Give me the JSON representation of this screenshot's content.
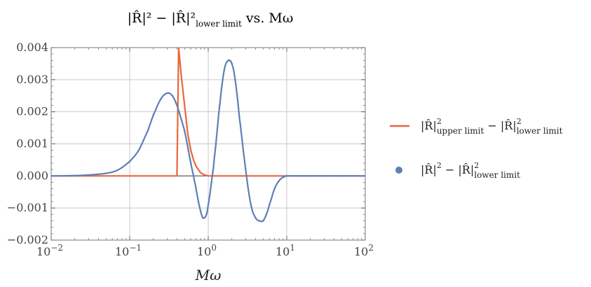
{
  "chart_data": {
    "type": "line",
    "title": {
      "main": "|R̂|² − |R̂|²",
      "sub": "lower limit",
      "suffix": " vs. Mω"
    },
    "xlabel": "Mω",
    "ylabel": "",
    "x_scale": "log",
    "xlim": [
      0.01,
      100
    ],
    "ylim": [
      -0.002,
      0.004
    ],
    "grid": true,
    "legend_position": "right",
    "x_ticks": [
      {
        "value": 0.01,
        "base": "10",
        "exp": "−2"
      },
      {
        "value": 0.1,
        "base": "10",
        "exp": "−1"
      },
      {
        "value": 1,
        "base": "10",
        "exp": "0"
      },
      {
        "value": 10,
        "base": "10",
        "exp": "1"
      },
      {
        "value": 100,
        "base": "10",
        "exp": "2"
      }
    ],
    "y_ticks": [
      {
        "value": -0.002,
        "label": "−0.002"
      },
      {
        "value": -0.001,
        "label": "−0.001"
      },
      {
        "value": 0,
        "label": "0.000"
      },
      {
        "value": 0.001,
        "label": "0.001"
      },
      {
        "value": 0.002,
        "label": "0.002"
      },
      {
        "value": 0.003,
        "label": "0.003"
      },
      {
        "value": 0.004,
        "label": "0.004"
      }
    ],
    "series": [
      {
        "name": "|R̂|²upper limit − |R̂|²lower limit",
        "name_parts": {
          "a": "|R̂|",
          "a_sub": "upper limit",
          "b": " − |R̂|",
          "b_sub": "lower limit"
        },
        "style": "line",
        "color": "#E8663A",
        "x": [
          0.01,
          0.1,
          0.2,
          0.3,
          0.4,
          0.42,
          0.45,
          0.5,
          0.55,
          0.6,
          0.65,
          0.7,
          0.8,
          0.9,
          1.0,
          2,
          5,
          10,
          100
        ],
        "y": [
          0,
          0,
          0,
          0,
          0,
          0.004,
          0.0032,
          0.0022,
          0.0013,
          0.0008,
          0.0005,
          0.0003,
          0.0001,
          3e-05,
          0,
          0,
          0,
          0,
          0
        ]
      },
      {
        "name": "|R̂|² − |R̂|²lower limit",
        "name_parts": {
          "a": "|R̂|",
          "a_sub": "",
          "b": " − |R̂|",
          "b_sub": "lower limit"
        },
        "style": "points",
        "color": "#5E7FB5",
        "x": [
          0.01,
          0.02,
          0.03,
          0.05,
          0.07,
          0.1,
          0.13,
          0.17,
          0.2,
          0.25,
          0.3,
          0.35,
          0.4,
          0.45,
          0.5,
          0.55,
          0.6,
          0.65,
          0.7,
          0.75,
          0.8,
          0.85,
          0.9,
          0.95,
          1.0,
          1.1,
          1.2,
          1.4,
          1.6,
          1.8,
          2.0,
          2.2,
          2.5,
          3.0,
          3.5,
          4.0,
          4.5,
          5.0,
          5.5,
          6.0,
          7.0,
          8.0,
          9.0,
          10,
          12,
          15,
          20,
          30,
          50,
          100
        ],
        "y": [
          0,
          1e-05,
          3e-05,
          8e-05,
          0.00018,
          0.00045,
          0.0008,
          0.0014,
          0.0019,
          0.0024,
          0.00258,
          0.0025,
          0.0022,
          0.0018,
          0.0014,
          0.0009,
          0.0004,
          0,
          -0.0004,
          -0.0008,
          -0.0011,
          -0.0013,
          -0.0013,
          -0.0012,
          -0.0009,
          -0.0002,
          0.0006,
          0.0022,
          0.0033,
          0.0036,
          0.0035,
          0.003,
          0.0018,
          0.0002,
          -0.0009,
          -0.0013,
          -0.0014,
          -0.0014,
          -0.0012,
          -0.0009,
          -0.0004,
          -0.00015,
          -4e-05,
          0,
          0,
          0,
          0,
          0,
          0,
          0
        ]
      }
    ]
  }
}
